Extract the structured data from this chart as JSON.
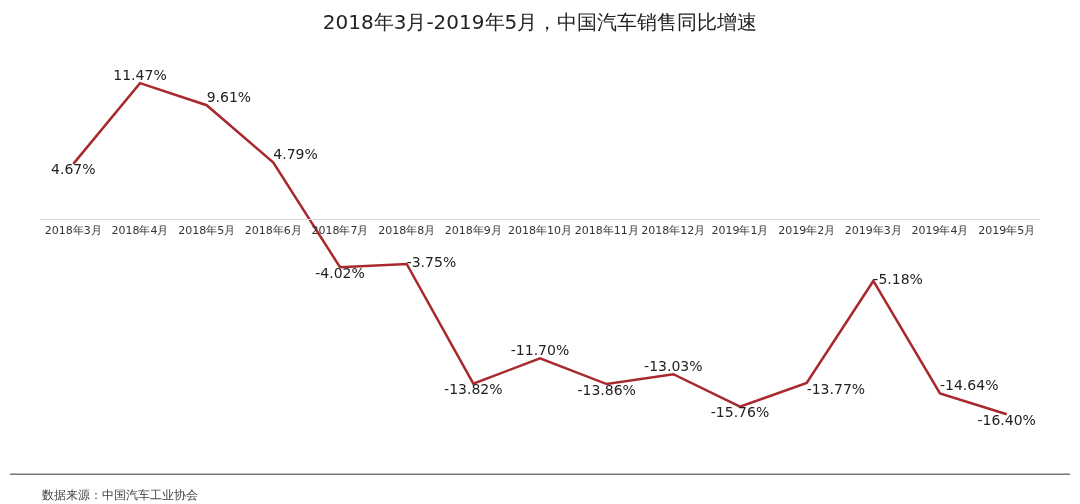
{
  "chart_data": {
    "type": "line",
    "title": "2018年3月-2019年5月，中国汽车销售同比增速",
    "categories": [
      "2018年3月",
      "2018年4月",
      "2018年5月",
      "2018年6月",
      "2018年7月",
      "2018年8月",
      "2018年9月",
      "2018年10月",
      "2018年11月",
      "2018年12月",
      "2019年1月",
      "2019年2月",
      "2019年3月",
      "2019年4月",
      "2019年5月"
    ],
    "series": [
      {
        "color": "#a8282d",
        "values": [
          4.67,
          11.47,
          9.61,
          4.79,
          -4.02,
          -3.75,
          -13.82,
          -11.7,
          -13.86,
          -13.03,
          -15.76,
          -13.77,
          -5.18,
          -14.64,
          -16.4
        ],
        "value_labels": [
          "4.67%",
          "11.47%",
          "9.61%",
          "4.79%",
          "-4.02%",
          "-3.75%",
          "-13.82%",
          "-11.70%",
          "-13.86%",
          "-13.03%",
          "-15.76%",
          "-13.77%",
          "-5.18%",
          "-14.64%",
          "-16.40%"
        ]
      }
    ],
    "marker": "none",
    "line_style": "solid",
    "grid": false,
    "annotations": [
      "数据来源：中国汽车工业协会"
    ]
  }
}
